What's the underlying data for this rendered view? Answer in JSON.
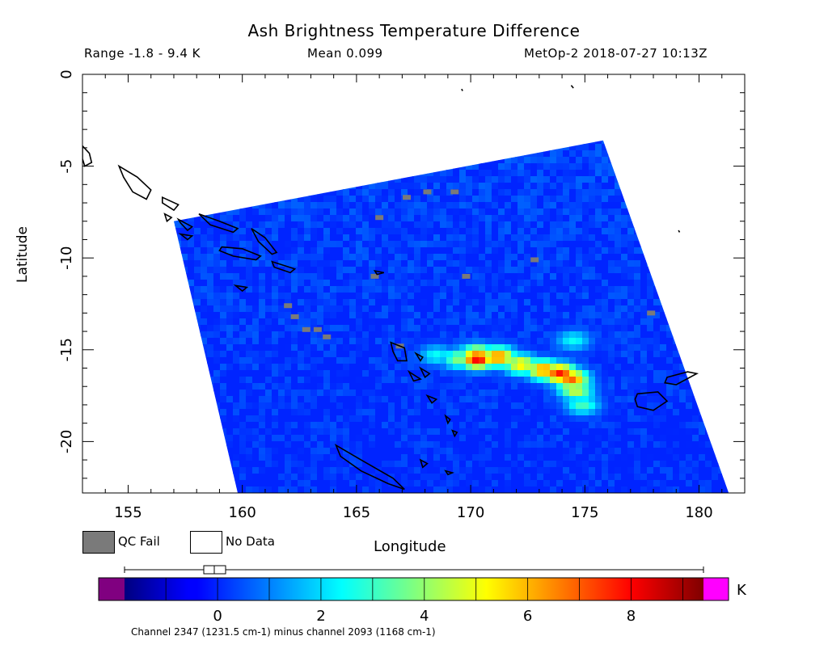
{
  "header": {
    "title": "Ash Brightness Temperature Difference",
    "range": "Range -1.8 - 9.4 K",
    "mean": "Mean 0.099",
    "source": "MetOp-2 2018-07-27 10:13Z"
  },
  "axes": {
    "xlabel": "Longitude",
    "ylabel": "Latitude",
    "x_ticks": [
      "155",
      "160",
      "165",
      "170",
      "175",
      "180"
    ],
    "y_ticks": [
      "0",
      "-5",
      "-10",
      "-15",
      "-20"
    ],
    "xlim": [
      153,
      182
    ],
    "ylim": [
      -22.8,
      0
    ]
  },
  "legend": {
    "qc_fail": "QC Fail",
    "no_data": "No Data",
    "qc_fail_color": "#7a7a7a",
    "no_data_color": "#ffffff"
  },
  "colorbar": {
    "unit": "K",
    "ticks": [
      "0",
      "2",
      "4",
      "6",
      "8"
    ],
    "range": [
      -1.8,
      9.4
    ],
    "caption": "Channel 2347 (1231.5 cm-1) minus channel 2093 (1168 cm-1)",
    "under_color": "#800080",
    "over_color": "#ff00ff"
  },
  "chart_data": {
    "type": "heatmap",
    "title": "Ash Brightness Temperature Difference",
    "xlabel": "Longitude",
    "ylabel": "Latitude",
    "xlim": [
      153,
      182
    ],
    "ylim": [
      -22.8,
      0
    ],
    "value_range": [
      -1.8,
      9.4
    ],
    "mean": 0.099,
    "units": "K",
    "swath_corners": [
      [
        157.0,
        -8.0
      ],
      [
        175.8,
        -3.6
      ],
      [
        181.3,
        -22.8
      ],
      [
        159.8,
        -22.8
      ]
    ],
    "background_value": 0.0,
    "plume": [
      {
        "lon": 168.5,
        "lat": -15.3,
        "value": 2.5
      },
      {
        "lon": 169.5,
        "lat": -15.5,
        "value": 4.0
      },
      {
        "lon": 170.3,
        "lat": -15.3,
        "value": 6.5
      },
      {
        "lon": 170.3,
        "lat": -15.5,
        "value": 8.2
      },
      {
        "lon": 171.2,
        "lat": -15.4,
        "value": 6.8
      },
      {
        "lon": 172.2,
        "lat": -15.8,
        "value": 5.5
      },
      {
        "lon": 173.2,
        "lat": -16.1,
        "value": 6.6
      },
      {
        "lon": 173.9,
        "lat": -16.3,
        "value": 7.8
      },
      {
        "lon": 174.4,
        "lat": -16.6,
        "value": 7.0
      },
      {
        "lon": 174.6,
        "lat": -17.2,
        "value": 4.8
      },
      {
        "lon": 174.9,
        "lat": -18.0,
        "value": 3.2
      },
      {
        "lon": 174.5,
        "lat": -14.5,
        "value": 2.5
      }
    ],
    "qc_fail_pixels": [
      [
        167.2,
        -6.7
      ],
      [
        168.1,
        -6.4
      ],
      [
        169.3,
        -6.4
      ],
      [
        166.0,
        -7.8
      ],
      [
        172.8,
        -10.1
      ],
      [
        169.8,
        -11.0
      ],
      [
        165.8,
        -11.0
      ],
      [
        162.3,
        -13.2
      ],
      [
        163.3,
        -13.9
      ],
      [
        162.8,
        -13.9
      ],
      [
        162.0,
        -12.6
      ],
      [
        163.7,
        -14.3
      ],
      [
        166.9,
        -14.8
      ],
      [
        177.9,
        -13.0
      ]
    ]
  }
}
